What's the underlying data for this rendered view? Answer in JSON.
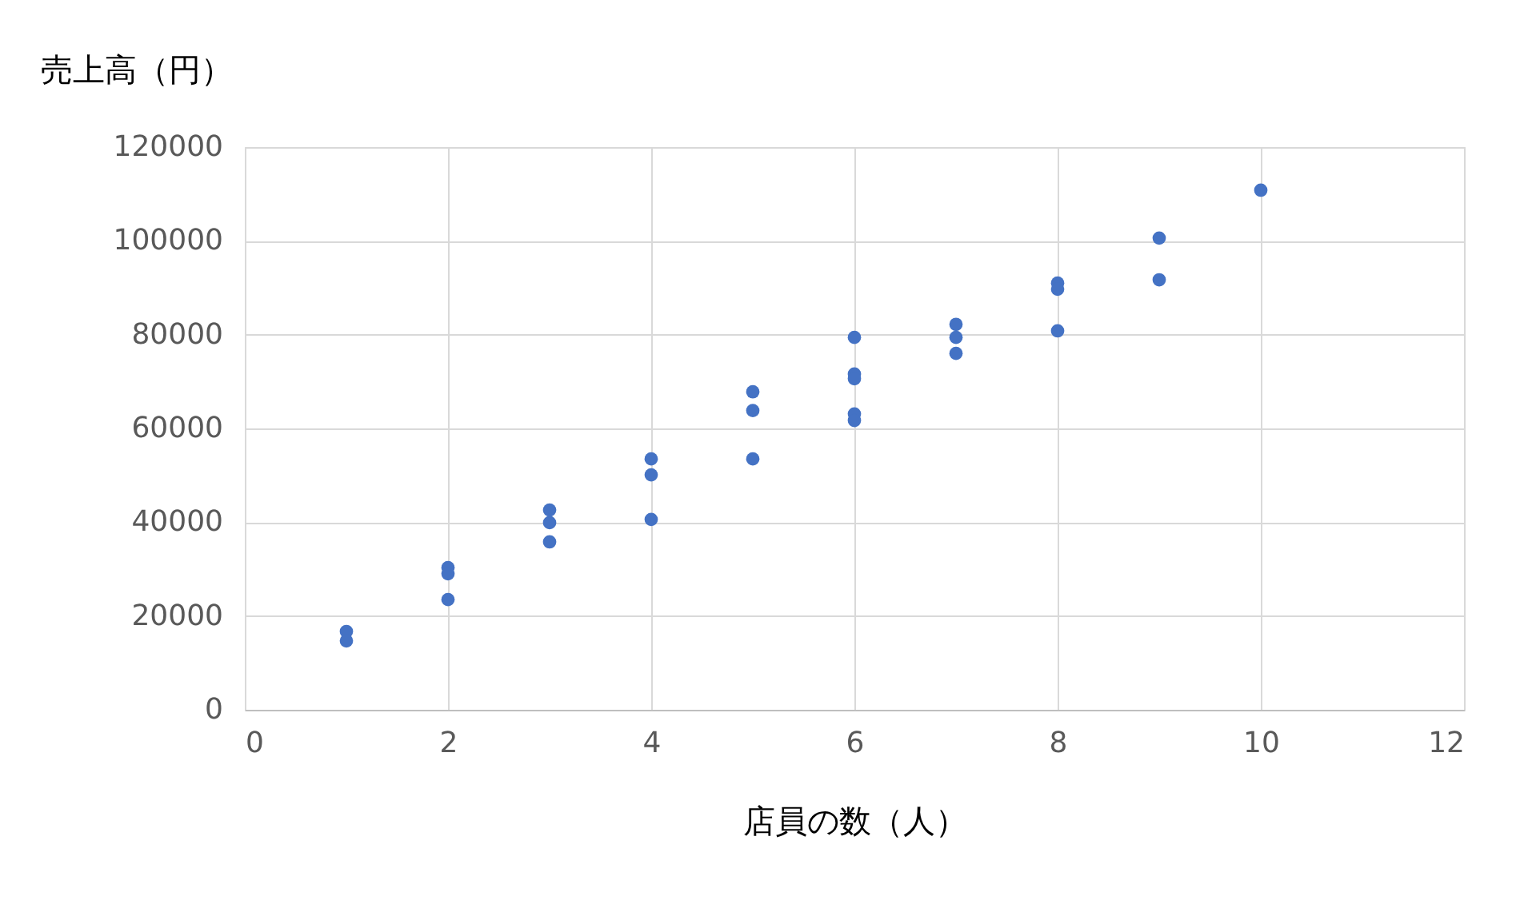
{
  "chart_data": {
    "type": "scatter",
    "xlabel": "店員の数（人）",
    "ylabel": "売上高（円）",
    "x": [
      1,
      1,
      2,
      2,
      2,
      3,
      3,
      3,
      4,
      4,
      4,
      5,
      5,
      5,
      6,
      6,
      6,
      6,
      6,
      7,
      7,
      7,
      8,
      8,
      8,
      9,
      9,
      10
    ],
    "series": [
      {
        "color": "#4472c4",
        "values": [
          16700,
          14700,
          30300,
          29000,
          23500,
          42600,
          39900,
          35800,
          53500,
          50100,
          40600,
          67800,
          63800,
          53500,
          79400,
          71600,
          70600,
          63100,
          61700,
          82200,
          79400,
          76000,
          91000,
          89700,
          80800,
          100600,
          91700,
          110800
        ]
      }
    ],
    "xlim": [
      0,
      12
    ],
    "xticks": [
      0,
      2,
      4,
      6,
      8,
      10,
      12
    ],
    "ylim": [
      0,
      120000
    ],
    "yticks": [
      0,
      20000,
      40000,
      60000,
      80000,
      100000,
      120000
    ],
    "grid": true,
    "marker": "circle"
  }
}
